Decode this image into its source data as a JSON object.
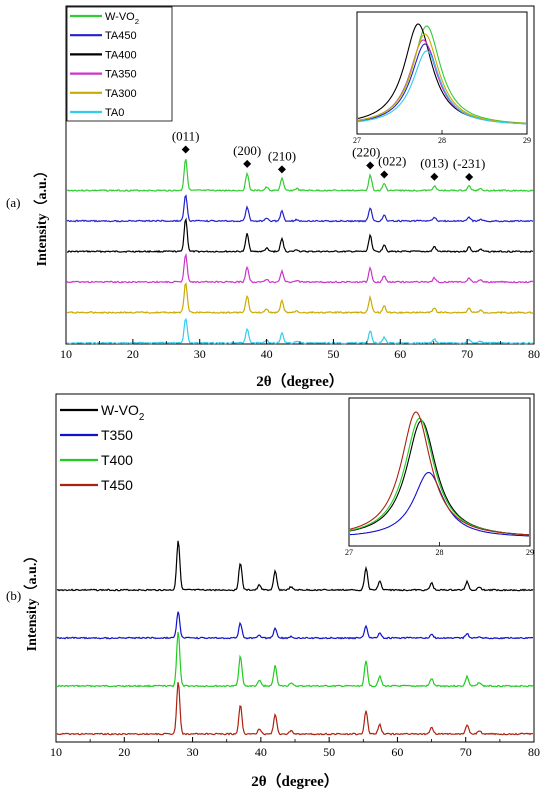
{
  "chart_data": [
    {
      "panel_label": "(a)",
      "type": "line",
      "xlabel": "2θ（degree）",
      "ylabel": "Intensity（a.u.）",
      "xlim": [
        10,
        80
      ],
      "xticks": [
        "10",
        "20",
        "30",
        "40",
        "50",
        "60",
        "70",
        "80"
      ],
      "peak_labels": [
        {
          "x": 27.9,
          "text": "(011)"
        },
        {
          "x": 37.1,
          "text": "(200)"
        },
        {
          "x": 42.3,
          "text": "(210)"
        },
        {
          "x": 55.5,
          "text": "(220)"
        },
        {
          "x": 57.6,
          "text": "(022)"
        },
        {
          "x": 65.1,
          "text": "(013)"
        },
        {
          "x": 70.3,
          "text": "(-231)"
        }
      ],
      "peaks": [
        {
          "x": 27.9,
          "rel": 1.0
        },
        {
          "x": 37.1,
          "rel": 0.55
        },
        {
          "x": 40.0,
          "rel": 0.1
        },
        {
          "x": 42.3,
          "rel": 0.38
        },
        {
          "x": 44.5,
          "rel": 0.06
        },
        {
          "x": 55.5,
          "rel": 0.5
        },
        {
          "x": 57.6,
          "rel": 0.22
        },
        {
          "x": 65.1,
          "rel": 0.15
        },
        {
          "x": 70.3,
          "rel": 0.14
        },
        {
          "x": 72.0,
          "rel": 0.07
        }
      ],
      "series": [
        {
          "name": "W-VO2",
          "name_main": "W-VO",
          "name_sub": "2",
          "color": "#33cc33",
          "offset": 5,
          "height": 32
        },
        {
          "name": "TA450",
          "color": "#2222cc",
          "offset": 4,
          "height": 26
        },
        {
          "name": "TA400",
          "color": "#000000",
          "offset": 3,
          "height": 33
        },
        {
          "name": "TA350",
          "color": "#cc33cc",
          "offset": 2,
          "height": 28
        },
        {
          "name": "TA300",
          "color": "#ccaa00",
          "offset": 1,
          "height": 30
        },
        {
          "name": "TA0",
          "color": "#33ccee",
          "offset": 0,
          "height": 25
        }
      ],
      "legend_position": "top-left",
      "inset": {
        "xlim": [
          27,
          29
        ],
        "xticks": [
          "27",
          "28",
          "29"
        ],
        "peak_centers": [
          27.82,
          27.8,
          27.72,
          27.78,
          27.8,
          27.82
        ],
        "peak_heights": [
          1.0,
          0.82,
          1.02,
          0.86,
          0.92,
          0.75
        ]
      }
    },
    {
      "panel_label": "(b)",
      "type": "line",
      "xlabel": "2θ（degree）",
      "ylabel": "Intensity（a.u.）",
      "xlim": [
        10,
        80
      ],
      "xticks": [
        "10",
        "20",
        "30",
        "40",
        "50",
        "60",
        "70",
        "80"
      ],
      "peaks": [
        {
          "x": 27.9,
          "rel": 1.0
        },
        {
          "x": 37.0,
          "rel": 0.55
        },
        {
          "x": 39.8,
          "rel": 0.1
        },
        {
          "x": 42.1,
          "rel": 0.37
        },
        {
          "x": 44.4,
          "rel": 0.06
        },
        {
          "x": 55.4,
          "rel": 0.45
        },
        {
          "x": 57.4,
          "rel": 0.18
        },
        {
          "x": 65.0,
          "rel": 0.14
        },
        {
          "x": 70.2,
          "rel": 0.17
        },
        {
          "x": 72.0,
          "rel": 0.07
        }
      ],
      "series": [
        {
          "name": "W-VO2",
          "name_main": "W-VO",
          "name_sub": "2",
          "color": "#000000",
          "offset": 3,
          "height": 50
        },
        {
          "name": "T350",
          "color": "#1111cc",
          "offset": 2,
          "height": 27
        },
        {
          "name": "T400",
          "color": "#22cc22",
          "offset": 1,
          "height": 55
        },
        {
          "name": "T450",
          "color": "#aa2211",
          "offset": 0,
          "height": 53
        }
      ],
      "legend_position": "top-left",
      "inset": {
        "xlim": [
          27,
          29
        ],
        "xticks": [
          "27",
          "28",
          "29"
        ],
        "peak_centers": [
          27.8,
          27.88,
          27.78,
          27.74
        ],
        "peak_heights": [
          0.93,
          0.52,
          0.95,
          1.0
        ]
      }
    }
  ]
}
